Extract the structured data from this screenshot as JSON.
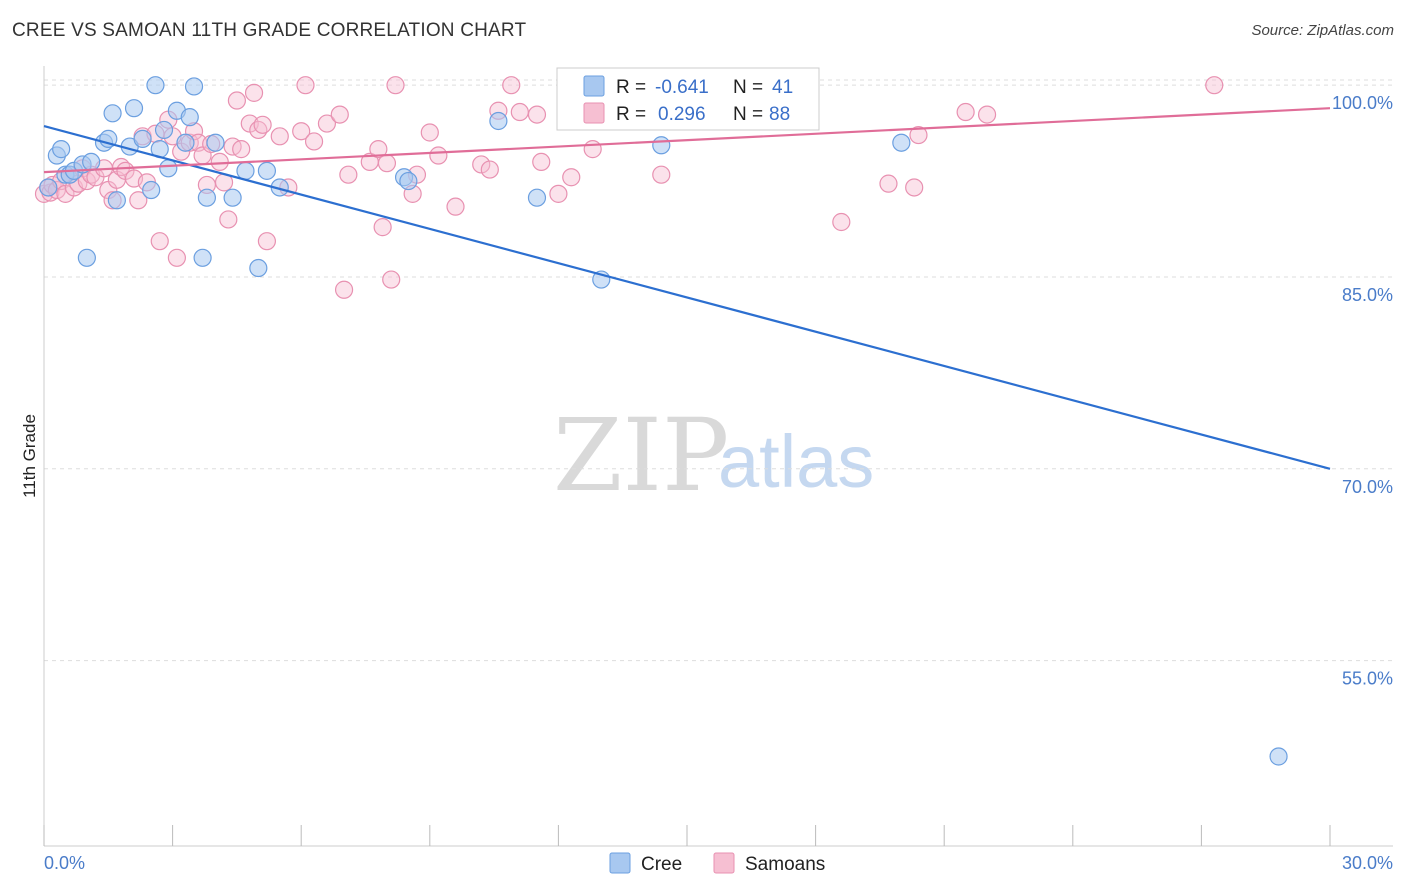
{
  "title": "CREE VS SAMOAN 11TH GRADE CORRELATION CHART",
  "source": "Source: ZipAtlas.com",
  "watermark": {
    "zip": "ZIP",
    "atlas": "atlas"
  },
  "colors": {
    "cree_fill": "#a8c8f0",
    "cree_stroke": "#6b9fe0",
    "cree_line": "#2c6fd0",
    "samoan_fill": "#f6bfd2",
    "samoan_stroke": "#e891b1",
    "samoan_line": "#e06d98",
    "tick_label": "#4a7cc9",
    "grid": "#dddddd"
  },
  "legend": {
    "rows": [
      {
        "r_label": "R =",
        "r_value": "-0.641",
        "n_label": "N =",
        "n_value": "41"
      },
      {
        "r_label": "R =",
        "r_value": "0.296",
        "n_label": "N =",
        "n_value": "88"
      }
    ]
  },
  "bottom_legend": {
    "cree": "Cree",
    "samoans": "Samoans"
  },
  "chart_data": {
    "type": "scatter",
    "title": "CREE VS SAMOAN 11TH GRADE CORRELATION CHART",
    "ylabel": "11th Grade",
    "xlim": [
      0,
      30
    ],
    "ylim": [
      40.5,
      101.5
    ],
    "x_tick_labels": {
      "left": "0.0%",
      "right": "30.0%"
    },
    "y_ticks": [
      {
        "value": 100,
        "label": "100.0%"
      },
      {
        "value": 85,
        "label": "85.0%"
      },
      {
        "value": 70,
        "label": "70.0%"
      },
      {
        "value": 55,
        "label": "55.0%"
      }
    ],
    "grid": true,
    "legend_position": "top-center",
    "series": [
      {
        "name": "Cree",
        "r": -0.641,
        "n": 41,
        "trend": [
          [
            0,
            96.8
          ],
          [
            30,
            70.0
          ]
        ],
        "points": [
          [
            0.1,
            92.0
          ],
          [
            0.3,
            94.5
          ],
          [
            0.4,
            95.0
          ],
          [
            0.5,
            93.0
          ],
          [
            0.6,
            93.0
          ],
          [
            0.7,
            93.3
          ],
          [
            0.9,
            93.8
          ],
          [
            1.0,
            86.5
          ],
          [
            1.1,
            94.0
          ],
          [
            1.4,
            95.5
          ],
          [
            1.5,
            95.8
          ],
          [
            1.6,
            97.8
          ],
          [
            1.7,
            91.0
          ],
          [
            2.0,
            95.2
          ],
          [
            2.1,
            98.2
          ],
          [
            2.3,
            95.8
          ],
          [
            2.5,
            91.8
          ],
          [
            2.6,
            100.0
          ],
          [
            2.7,
            95.0
          ],
          [
            2.8,
            96.5
          ],
          [
            2.9,
            93.5
          ],
          [
            3.1,
            98.0
          ],
          [
            3.3,
            95.5
          ],
          [
            3.4,
            97.5
          ],
          [
            3.5,
            99.9
          ],
          [
            3.7,
            86.5
          ],
          [
            3.8,
            91.2
          ],
          [
            4.0,
            95.5
          ],
          [
            4.4,
            91.2
          ],
          [
            4.7,
            93.3
          ],
          [
            5.0,
            85.7
          ],
          [
            5.2,
            93.3
          ],
          [
            5.5,
            92.0
          ],
          [
            8.4,
            92.8
          ],
          [
            8.5,
            92.5
          ],
          [
            10.6,
            97.2
          ],
          [
            11.5,
            91.2
          ],
          [
            13.0,
            84.8
          ],
          [
            14.4,
            95.3
          ],
          [
            20.0,
            95.5
          ],
          [
            28.8,
            47.5
          ]
        ]
      },
      {
        "name": "Samoans",
        "r": 0.296,
        "n": 88,
        "trend": [
          [
            0,
            93.2
          ],
          [
            30,
            98.2
          ]
        ],
        "points": [
          [
            0.0,
            91.5
          ],
          [
            0.1,
            92.0
          ],
          [
            0.15,
            91.6
          ],
          [
            0.2,
            92.2
          ],
          [
            0.3,
            91.8
          ],
          [
            0.4,
            92.5
          ],
          [
            0.5,
            91.5
          ],
          [
            0.6,
            93.0
          ],
          [
            0.7,
            92.0
          ],
          [
            0.8,
            92.3
          ],
          [
            0.9,
            93.5
          ],
          [
            1.0,
            92.5
          ],
          [
            1.1,
            93.0
          ],
          [
            1.2,
            92.8
          ],
          [
            1.4,
            93.5
          ],
          [
            1.5,
            91.8
          ],
          [
            1.6,
            91.0
          ],
          [
            1.7,
            92.6
          ],
          [
            1.8,
            93.6
          ],
          [
            1.9,
            93.3
          ],
          [
            2.1,
            92.7
          ],
          [
            2.2,
            91.0
          ],
          [
            2.3,
            96.0
          ],
          [
            2.4,
            92.4
          ],
          [
            2.6,
            96.2
          ],
          [
            2.7,
            87.8
          ],
          [
            2.9,
            97.3
          ],
          [
            3.0,
            96.0
          ],
          [
            3.1,
            86.5
          ],
          [
            3.2,
            94.8
          ],
          [
            3.4,
            95.5
          ],
          [
            3.5,
            96.4
          ],
          [
            3.6,
            95.5
          ],
          [
            3.7,
            94.5
          ],
          [
            3.8,
            92.2
          ],
          [
            3.9,
            95.4
          ],
          [
            4.1,
            94.0
          ],
          [
            4.2,
            92.4
          ],
          [
            4.3,
            89.5
          ],
          [
            4.4,
            95.2
          ],
          [
            4.5,
            98.8
          ],
          [
            4.6,
            95.0
          ],
          [
            4.8,
            97.0
          ],
          [
            4.9,
            99.4
          ],
          [
            5.0,
            96.5
          ],
          [
            5.1,
            96.9
          ],
          [
            5.2,
            87.8
          ],
          [
            5.5,
            96.0
          ],
          [
            5.7,
            92.0
          ],
          [
            6.0,
            96.4
          ],
          [
            6.1,
            100.0
          ],
          [
            6.3,
            95.6
          ],
          [
            6.6,
            97.0
          ],
          [
            6.9,
            97.7
          ],
          [
            7.0,
            84.0
          ],
          [
            7.1,
            93.0
          ],
          [
            7.6,
            94.0
          ],
          [
            7.8,
            95.0
          ],
          [
            7.9,
            88.9
          ],
          [
            8.0,
            93.9
          ],
          [
            8.1,
            84.8
          ],
          [
            8.2,
            100.0
          ],
          [
            8.6,
            91.5
          ],
          [
            8.7,
            93.0
          ],
          [
            9.0,
            96.3
          ],
          [
            9.2,
            94.5
          ],
          [
            9.6,
            90.5
          ],
          [
            10.2,
            93.8
          ],
          [
            10.4,
            93.4
          ],
          [
            10.6,
            98.0
          ],
          [
            10.9,
            100.0
          ],
          [
            11.1,
            97.9
          ],
          [
            11.5,
            97.7
          ],
          [
            11.6,
            94.0
          ],
          [
            12.0,
            91.5
          ],
          [
            12.3,
            92.8
          ],
          [
            12.8,
            95.0
          ],
          [
            13.9,
            100.0
          ],
          [
            14.4,
            93.0
          ],
          [
            14.8,
            99.9
          ],
          [
            15.0,
            97.2
          ],
          [
            16.3,
            99.9
          ],
          [
            18.6,
            89.3
          ],
          [
            19.7,
            92.3
          ],
          [
            20.3,
            92.0
          ],
          [
            20.4,
            96.1
          ],
          [
            21.5,
            97.9
          ],
          [
            22.0,
            97.7
          ],
          [
            27.3,
            100.0
          ]
        ]
      }
    ]
  }
}
